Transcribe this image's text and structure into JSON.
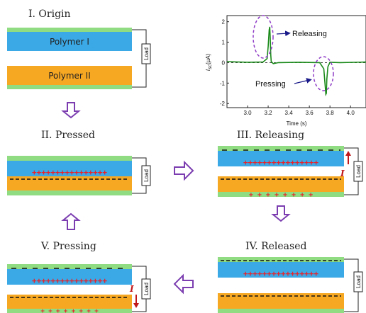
{
  "panels": {
    "origin": "I. Origin",
    "pressed": "II. Pressed",
    "releasing": "III. Releasing",
    "released": "IV. Released",
    "pressing": "V. Pressing"
  },
  "layers": {
    "polymer1": "Polymer  I",
    "polymer2": "Polymer  II"
  },
  "load_label": "Load",
  "current_label": "I",
  "chart_data": {
    "type": "line",
    "xlabel": "Time (s)",
    "ylabel": "I",
    "ylabel_sub": "sc",
    "ylabel_unit": "(µA)",
    "xlim": [
      2.8,
      4.15
    ],
    "ylim": [
      -2.2,
      2.3
    ],
    "xticks": [
      "3.0",
      "3.2",
      "3.4",
      "3.6",
      "3.8",
      "4.0"
    ],
    "yticks": [
      "2",
      "1",
      "0",
      "-1",
      "-2"
    ],
    "xtick_values": [
      3.0,
      3.2,
      3.4,
      3.6,
      3.8,
      4.0
    ],
    "ytick_values": [
      2,
      1,
      0,
      -1,
      -2
    ],
    "series": [
      {
        "color": "#1a8a1a",
        "x": [
          2.8,
          3.0,
          3.15,
          3.19,
          3.2,
          3.21,
          3.215,
          3.22,
          3.225,
          3.23,
          3.25,
          3.3,
          3.5,
          3.7,
          3.74,
          3.75,
          3.76,
          3.765,
          3.77,
          3.78,
          3.8,
          3.9,
          4.15
        ],
        "y": [
          0.05,
          0.02,
          0.03,
          0.2,
          0.8,
          1.6,
          1.75,
          1.2,
          0.4,
          0.05,
          -0.05,
          0.0,
          0.02,
          0.0,
          -0.3,
          -0.9,
          -1.55,
          -1.5,
          -0.8,
          -0.2,
          0.02,
          0.0,
          0.03
        ]
      }
    ],
    "annotations": [
      "Releasing",
      "Pressing"
    ],
    "zero_line": true
  },
  "colors": {
    "polymer1": "#3aa9e6",
    "polymer2": "#f7a823",
    "electrode": "#8fdc82",
    "arrow": "#7b3db0",
    "positive": "#e8232b",
    "negative": "#111111",
    "current_arrow": "#c0171b",
    "dashed_highlight": "#8e3bc6"
  }
}
